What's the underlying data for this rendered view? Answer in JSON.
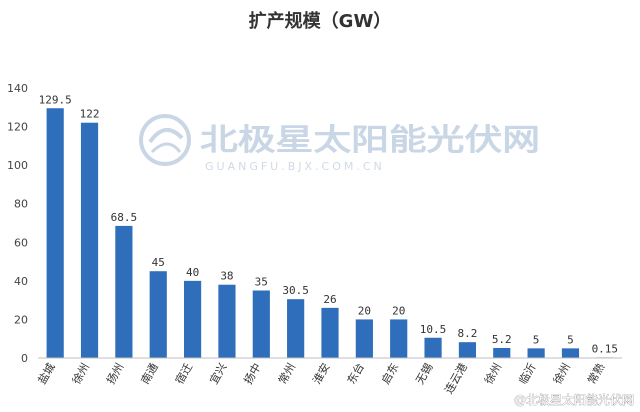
{
  "chart_data": {
    "type": "bar",
    "title": "扩产规模（GW）",
    "categories": [
      "盐城",
      "徐州",
      "扬州",
      "南通",
      "宿迁",
      "宜兴",
      "扬中",
      "常州",
      "淮安",
      "东台",
      "启东",
      "无锡",
      "连云港",
      "徐州",
      "临沂",
      "徐州",
      "常熟"
    ],
    "values": [
      129.5,
      122,
      68.5,
      45,
      40,
      38,
      35,
      30.5,
      26,
      20,
      20,
      10.5,
      8.2,
      5.2,
      5,
      5,
      0.15
    ],
    "data_labels": [
      "129.5",
      "122",
      "68.5",
      "45",
      "40",
      "38",
      "35",
      "30.5",
      "26",
      "20",
      "20",
      "10.5",
      "8.2",
      "5.2",
      "5",
      "5",
      "0.15"
    ],
    "ylim": [
      0,
      140
    ],
    "yticks": [
      0,
      20,
      40,
      60,
      80,
      100,
      120,
      140
    ],
    "grid": false,
    "legend": "none",
    "bar_color": "#2f6eba",
    "xlabel": "",
    "ylabel": ""
  },
  "watermark": {
    "center_text": "北极星太阳能光伏网",
    "center_sub": "GUANGFU.BJX.COM.CN",
    "corner_text": "@北极星太阳能光伏网",
    "logo": "bjx-logo-icon"
  }
}
